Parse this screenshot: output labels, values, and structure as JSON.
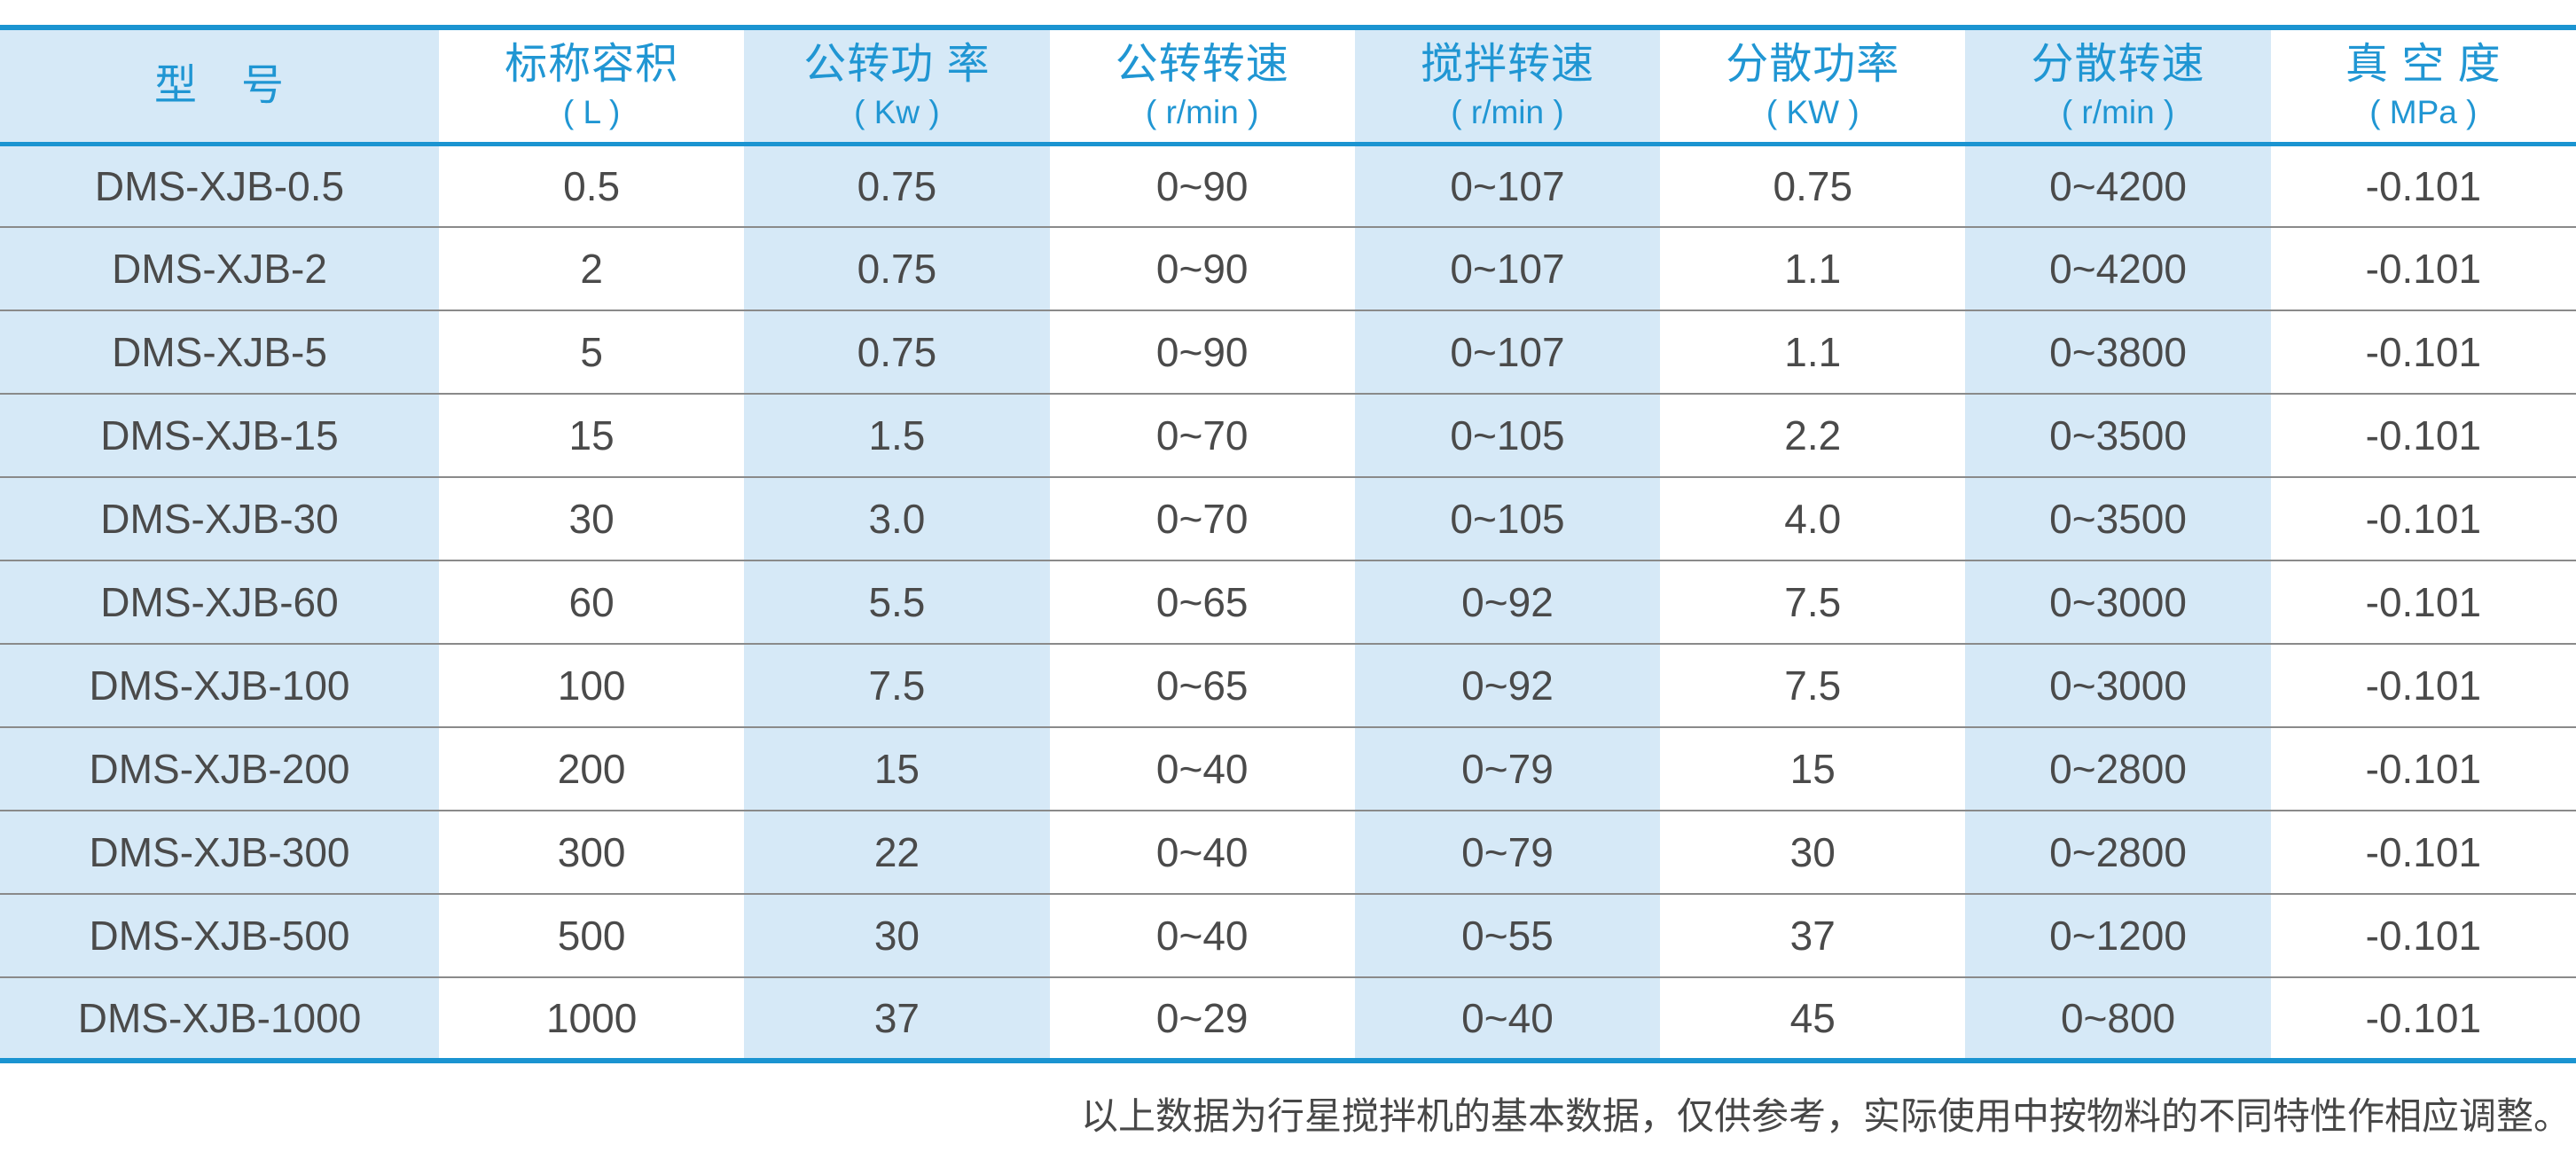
{
  "colors": {
    "rule_blue": "#1b94d1",
    "header_text_blue": "#2096d3",
    "stripe_light_blue": "#d6e9f7",
    "body_text_gray": "#4a4a4a",
    "row_separator_gray": "#8a8a8a"
  },
  "table": {
    "columns": [
      {
        "label": "型　号",
        "unit": ""
      },
      {
        "label": "标称容积",
        "unit": "( L )"
      },
      {
        "label": "公转功 率",
        "unit": "( Kw )"
      },
      {
        "label": "公转转速",
        "unit": "( r/min )"
      },
      {
        "label": "搅拌转速",
        "unit": "( r/min )"
      },
      {
        "label": "分散功率",
        "unit": "( KW )"
      },
      {
        "label": "分散转速",
        "unit": "( r/min )"
      },
      {
        "label": "真 空 度",
        "unit": "( MPa )"
      }
    ],
    "rows": [
      [
        "DMS-XJB-0.5",
        "0.5",
        "0.75",
        "0~90",
        "0~107",
        "0.75",
        "0~4200",
        "-0.101"
      ],
      [
        "DMS-XJB-2",
        "2",
        "0.75",
        "0~90",
        "0~107",
        "1.1",
        "0~4200",
        "-0.101"
      ],
      [
        "DMS-XJB-5",
        "5",
        "0.75",
        "0~90",
        "0~107",
        "1.1",
        "0~3800",
        "-0.101"
      ],
      [
        "DMS-XJB-15",
        "15",
        "1.5",
        "0~70",
        "0~105",
        "2.2",
        "0~3500",
        "-0.101"
      ],
      [
        "DMS-XJB-30",
        "30",
        "3.0",
        "0~70",
        "0~105",
        "4.0",
        "0~3500",
        "-0.101"
      ],
      [
        "DMS-XJB-60",
        "60",
        "5.5",
        "0~65",
        "0~92",
        "7.5",
        "0~3000",
        "-0.101"
      ],
      [
        "DMS-XJB-100",
        "100",
        "7.5",
        "0~65",
        "0~92",
        "7.5",
        "0~3000",
        "-0.101"
      ],
      [
        "DMS-XJB-200",
        "200",
        "15",
        "0~40",
        "0~79",
        "15",
        "0~2800",
        "-0.101"
      ],
      [
        "DMS-XJB-300",
        "300",
        "22",
        "0~40",
        "0~79",
        "30",
        "0~2800",
        "-0.101"
      ],
      [
        "DMS-XJB-500",
        "500",
        "30",
        "0~40",
        "0~55",
        "37",
        "0~1200",
        "-0.101"
      ],
      [
        "DMS-XJB-1000",
        "1000",
        "37",
        "0~29",
        "0~40",
        "45",
        "0~800",
        "-0.101"
      ]
    ]
  },
  "footer": {
    "note": "以上数据为行星搅拌机的基本数据，仅供参考，实际使用中按物料的不同特性作相应调整。"
  }
}
